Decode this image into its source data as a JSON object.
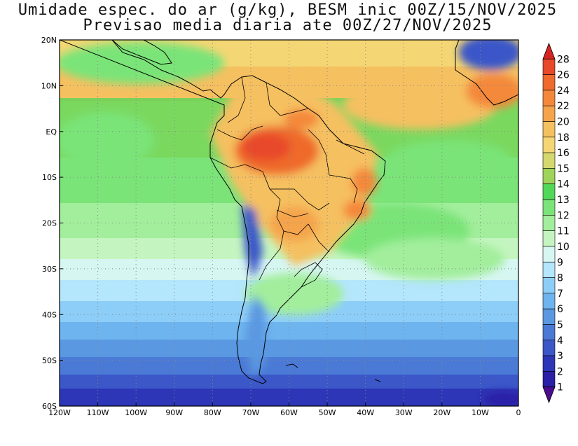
{
  "title": {
    "line1": "Umidade espec. do ar (g/kg), BESM inic 00Z/15/NOV/2025",
    "line2": "Previsao media diaria ate 00Z/27/NOV/2025"
  },
  "axes": {
    "x_ticks": [
      "120W",
      "110W",
      "100W",
      "90W",
      "80W",
      "70W",
      "60W",
      "50W",
      "40W",
      "30W",
      "20W",
      "10W",
      "0"
    ],
    "x_values": [
      -120,
      -110,
      -100,
      -90,
      -80,
      -70,
      -60,
      -50,
      -40,
      -30,
      -20,
      -10,
      0
    ],
    "y_ticks": [
      "20N",
      "10N",
      "EQ",
      "10S",
      "20S",
      "30S",
      "40S",
      "50S",
      "60S"
    ],
    "y_values": [
      20,
      10,
      0,
      -10,
      -20,
      -30,
      -40,
      -50,
      -60
    ],
    "lon_range": [
      -120,
      0
    ],
    "lat_range": [
      -60,
      20
    ],
    "grid": true
  },
  "colorbar": {
    "levels": [
      "1",
      "2",
      "3",
      "4",
      "5",
      "6",
      "7",
      "8",
      "9",
      "10",
      "11",
      "12",
      "13",
      "14",
      "15",
      "16",
      "18",
      "20",
      "22",
      "24",
      "26",
      "28"
    ],
    "colors": [
      "#4b0b8f",
      "#2a1fa6",
      "#2d36b6",
      "#3b57c8",
      "#4a7ad6",
      "#5a98e2",
      "#6eb4ee",
      "#8dcef8",
      "#b4e6fc",
      "#d6f6f2",
      "#c4f5c0",
      "#a2ee9c",
      "#7ae478",
      "#52d858",
      "#9ed45a",
      "#d4d86e",
      "#f4d774",
      "#f5c060",
      "#f5a44c",
      "#f4883a",
      "#ef6a2c",
      "#e8492a",
      "#d42424"
    ]
  }
}
